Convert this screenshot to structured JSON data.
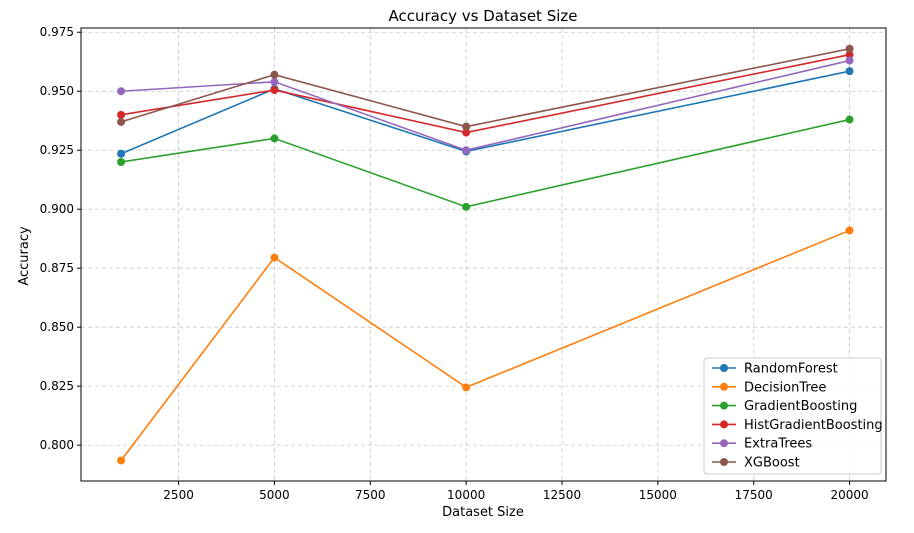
{
  "chart_data": {
    "type": "line",
    "title": "Accuracy vs Dataset Size",
    "xlabel": "Dataset Size",
    "ylabel": "Accuracy",
    "x": [
      1000,
      5000,
      10000,
      20000
    ],
    "xlim": [
      -45,
      20950
    ],
    "ylim": [
      0.7848,
      0.9768
    ],
    "xticks": [
      2500,
      5000,
      7500,
      10000,
      12500,
      15000,
      17500,
      20000
    ],
    "xtick_labels": [
      "2500",
      "5000",
      "7500",
      "10000",
      "12500",
      "15000",
      "17500",
      "20000"
    ],
    "yticks": [
      0.8,
      0.825,
      0.85,
      0.875,
      0.9,
      0.925,
      0.95,
      0.975
    ],
    "ytick_labels": [
      "0.800",
      "0.825",
      "0.850",
      "0.875",
      "0.900",
      "0.925",
      "0.950",
      "0.975"
    ],
    "grid": true,
    "legend_position": "bottom-right",
    "series": [
      {
        "name": "RandomForest",
        "color": "#1f77b4",
        "values": [
          0.9235,
          0.951,
          0.9245,
          0.9585
        ]
      },
      {
        "name": "DecisionTree",
        "color": "#ff7f0e",
        "values": [
          0.7935,
          0.8795,
          0.8245,
          0.891
        ]
      },
      {
        "name": "GradientBoosting",
        "color": "#2ca02c",
        "values": [
          0.92,
          0.93,
          0.901,
          0.938
        ]
      },
      {
        "name": "HistGradientBoosting",
        "color": "#d62728",
        "values": [
          0.94,
          0.9505,
          0.9325,
          0.9655
        ]
      },
      {
        "name": "ExtraTrees",
        "color": "#9467bd",
        "values": [
          0.95,
          0.954,
          0.925,
          0.963
        ]
      },
      {
        "name": "XGBoost",
        "color": "#8c564b",
        "values": [
          0.937,
          0.957,
          0.935,
          0.968
        ]
      }
    ]
  }
}
